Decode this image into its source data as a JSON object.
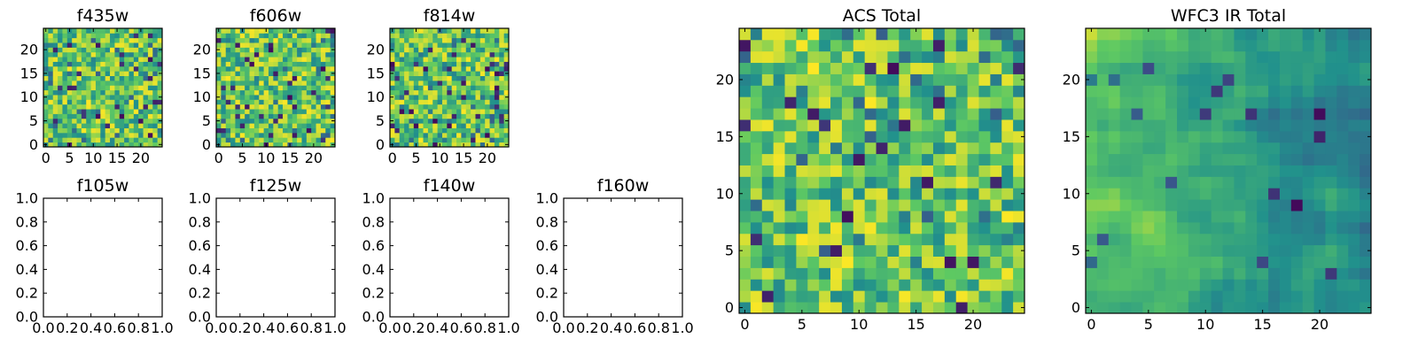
{
  "colormap": "viridis",
  "palette": [
    "#440154",
    "#3b528b",
    "#21918c",
    "#5ec962",
    "#fde725"
  ],
  "chart_data": [
    {
      "type": "heatmap",
      "title": "f435w",
      "xlabel": "",
      "ylabel": "",
      "grid": false,
      "xlim": [
        -0.5,
        24.5
      ],
      "ylim": [
        -0.5,
        24.5
      ],
      "xticks": [
        "0",
        "5",
        "10",
        "15",
        "20"
      ],
      "yticks": [
        "0",
        "5",
        "10",
        "15",
        "20"
      ],
      "rows": 25,
      "cols": 25,
      "value_range": [
        0,
        1
      ],
      "seed": 11,
      "style": "noise"
    },
    {
      "type": "heatmap",
      "title": "f606w",
      "xlabel": "",
      "ylabel": "",
      "grid": false,
      "xlim": [
        -0.5,
        24.5
      ],
      "ylim": [
        -0.5,
        24.5
      ],
      "xticks": [
        "0",
        "5",
        "10",
        "15",
        "20"
      ],
      "yticks": [
        "0",
        "5",
        "10",
        "15",
        "20"
      ],
      "rows": 25,
      "cols": 25,
      "value_range": [
        0,
        1
      ],
      "seed": 23,
      "style": "noise"
    },
    {
      "type": "heatmap",
      "title": "f814w",
      "xlabel": "",
      "ylabel": "",
      "grid": false,
      "xlim": [
        -0.5,
        24.5
      ],
      "ylim": [
        -0.5,
        24.5
      ],
      "xticks": [
        "0",
        "5",
        "10",
        "15",
        "20"
      ],
      "yticks": [
        "0",
        "5",
        "10",
        "15",
        "20"
      ],
      "rows": 25,
      "cols": 25,
      "value_range": [
        0,
        1
      ],
      "seed": 37,
      "style": "noise"
    },
    {
      "type": "empty",
      "title": "f105w",
      "xlim": [
        0,
        1
      ],
      "ylim": [
        0,
        1
      ],
      "xticks": [
        "0.0",
        "0.2",
        "0.4",
        "0.6",
        "0.8",
        "1.0"
      ],
      "yticks": [
        "0.0",
        "0.2",
        "0.4",
        "0.6",
        "0.8",
        "1.0"
      ]
    },
    {
      "type": "empty",
      "title": "f125w",
      "xlim": [
        0,
        1
      ],
      "ylim": [
        0,
        1
      ],
      "xticks": [
        "0.0",
        "0.2",
        "0.4",
        "0.6",
        "0.8",
        "1.0"
      ],
      "yticks": [
        "0.0",
        "0.2",
        "0.4",
        "0.6",
        "0.8",
        "1.0"
      ]
    },
    {
      "type": "empty",
      "title": "f140w",
      "xlim": [
        0,
        1
      ],
      "ylim": [
        0,
        1
      ],
      "xticks": [
        "0.0",
        "0.2",
        "0.4",
        "0.6",
        "0.8",
        "1.0"
      ],
      "yticks": [
        "0.0",
        "0.2",
        "0.4",
        "0.6",
        "0.8",
        "1.0"
      ]
    },
    {
      "type": "empty",
      "title": "f160w",
      "xlim": [
        0,
        1
      ],
      "ylim": [
        0,
        1
      ],
      "xticks": [
        "0.0",
        "0.2",
        "0.4",
        "0.6",
        "0.8",
        "1.0"
      ],
      "yticks": [
        "0.0",
        "0.2",
        "0.4",
        "0.6",
        "0.8",
        "1.0"
      ]
    },
    {
      "type": "heatmap",
      "title": "ACS Total",
      "xlabel": "",
      "ylabel": "",
      "grid": false,
      "xlim": [
        -0.5,
        24.5
      ],
      "ylim": [
        -0.5,
        24.5
      ],
      "xticks": [
        "0",
        "5",
        "10",
        "15",
        "20"
      ],
      "yticks": [
        "0",
        "5",
        "10",
        "15",
        "20"
      ],
      "rows": 25,
      "cols": 25,
      "value_range": [
        0,
        1
      ],
      "seed": 53,
      "style": "noise"
    },
    {
      "type": "heatmap",
      "title": "WFC3 IR Total",
      "xlabel": "",
      "ylabel": "",
      "grid": false,
      "xlim": [
        -0.5,
        24.5
      ],
      "ylim": [
        -0.5,
        24.5
      ],
      "xticks": [
        "0",
        "5",
        "10",
        "15",
        "20"
      ],
      "yticks": [
        "0",
        "5",
        "10",
        "15",
        "20"
      ],
      "rows": 25,
      "cols": 25,
      "value_range": [
        0,
        1
      ],
      "seed": 71,
      "style": "smooth"
    }
  ]
}
